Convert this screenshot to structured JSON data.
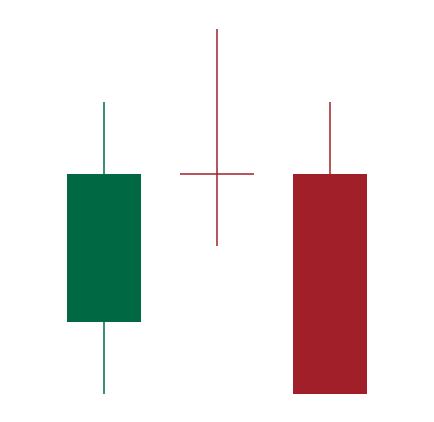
{
  "chart_data": {
    "type": "candlestick",
    "title": "",
    "xlabel": "",
    "ylabel": "",
    "grid": false,
    "legend": "none",
    "ylim": [
      0,
      422
    ],
    "candles": [
      {
        "open": 100,
        "close": 248,
        "high": 320,
        "low": 28,
        "direction": "up"
      },
      {
        "open": 248,
        "close": 248,
        "high": 393,
        "low": 176,
        "direction": "doji"
      },
      {
        "open": 248,
        "close": 28,
        "high": 320,
        "low": 28,
        "direction": "down"
      }
    ]
  },
  "colors": {
    "up": "#006843",
    "down": "#a01f28",
    "doji": "#a01f28",
    "background": "#ffffff"
  }
}
